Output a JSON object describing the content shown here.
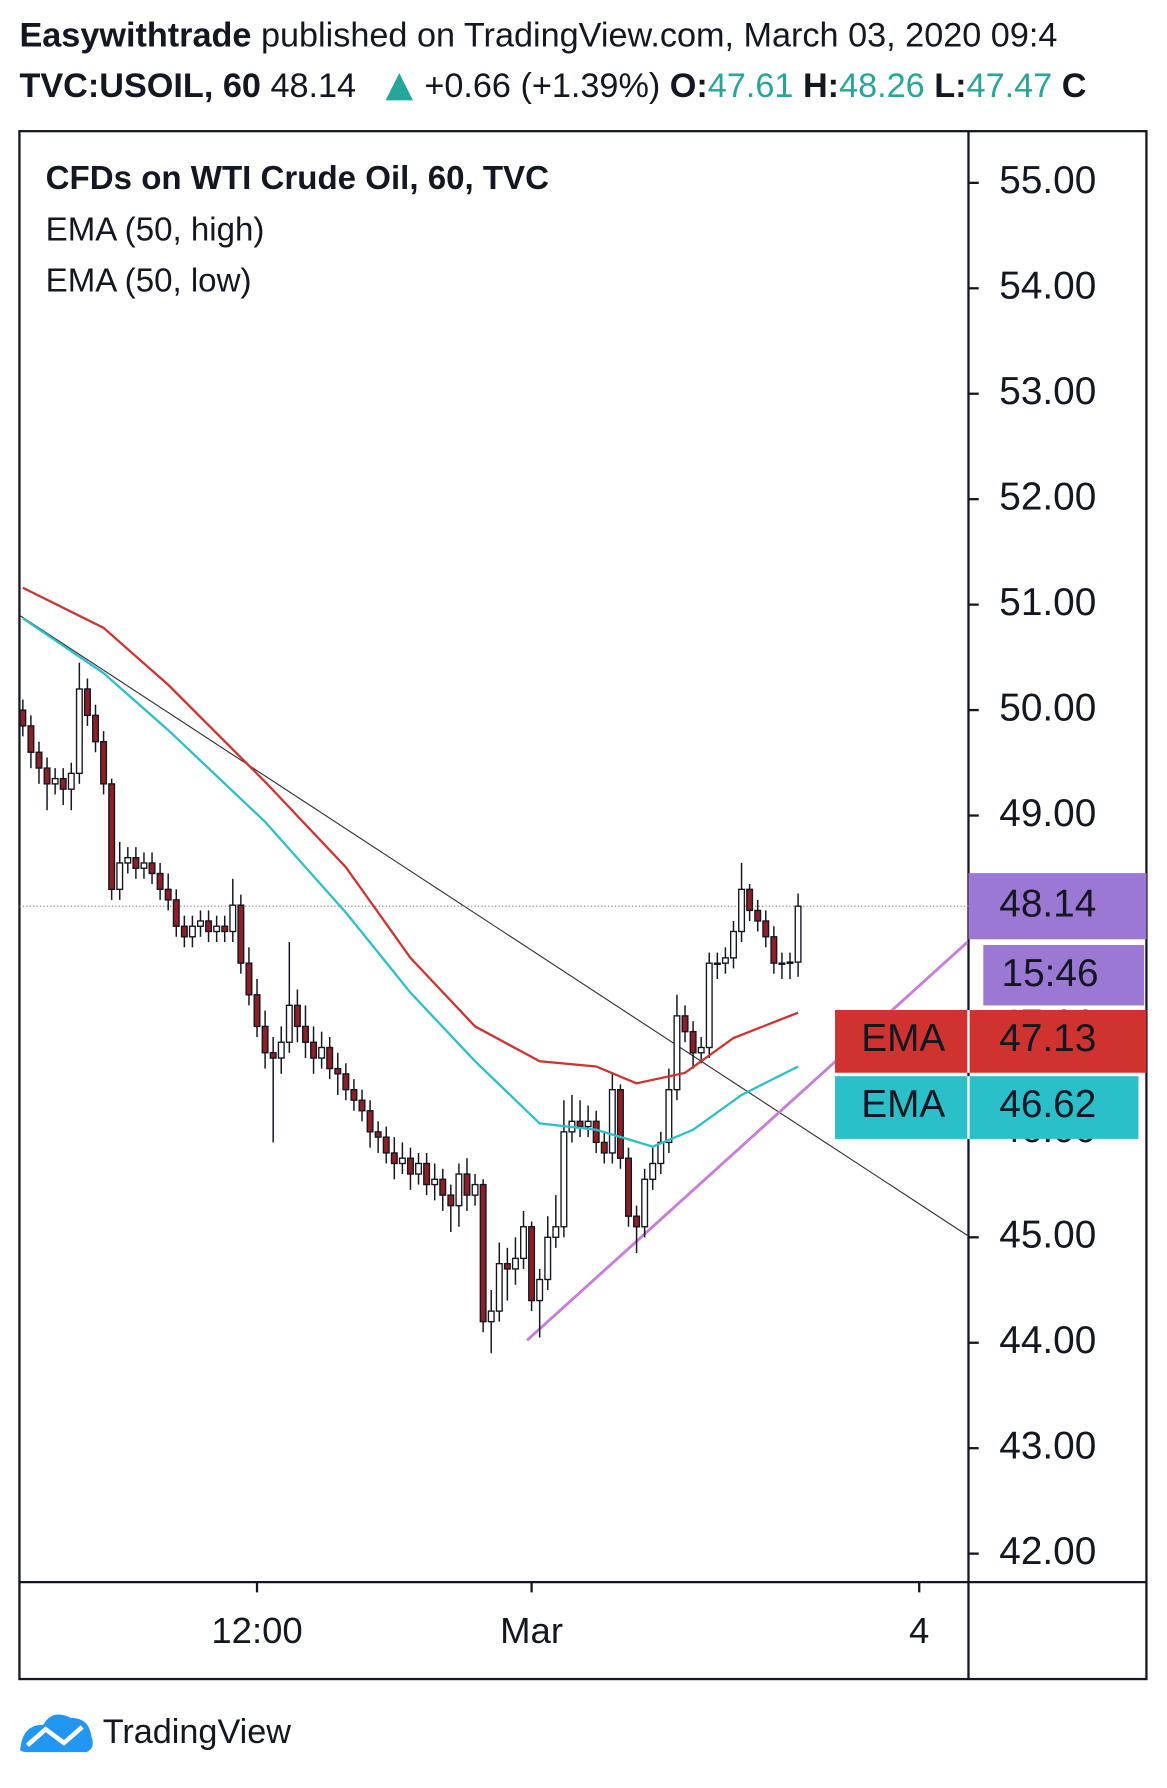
{
  "header": {
    "author": "Easywithtrade",
    "published": "published on TradingView.com, March 03, 2020 09:4",
    "symbol": "TVC:USOIL, 60",
    "change": "+0.66 (+1.39%)",
    "open_label": "O:",
    "high_label": "H:",
    "low_label": "L:",
    "close_label": "C"
  },
  "footer": {
    "brand": "TradingView"
  },
  "chart_data": {
    "type": "candlestick",
    "title": "CFDs on WTI Crude Oil, 60, TVC",
    "x": [
      0,
      1,
      2,
      3,
      4,
      5,
      6,
      7,
      8,
      9,
      10,
      11,
      12,
      13,
      14,
      15,
      16,
      17,
      18,
      19,
      20,
      21,
      22,
      23,
      24,
      25,
      26,
      27,
      28,
      29,
      30,
      31,
      32,
      33,
      34,
      35,
      36,
      37,
      38,
      39,
      40,
      41,
      42,
      43,
      44,
      45,
      46,
      47,
      48,
      49,
      50,
      51,
      52,
      53,
      54,
      55,
      56,
      57,
      58,
      59,
      60,
      61,
      62,
      63,
      64,
      65,
      66,
      67,
      68,
      69,
      70,
      71,
      72,
      73,
      74,
      75,
      76,
      77,
      78,
      79,
      80,
      81,
      82,
      83,
      84,
      85,
      86,
      87,
      88,
      89,
      90,
      91,
      92,
      93,
      94,
      95,
      96
    ],
    "open": [
      50.0,
      49.85,
      49.6,
      49.45,
      49.3,
      49.35,
      49.25,
      49.4,
      50.2,
      49.95,
      49.7,
      49.3,
      48.3,
      48.55,
      48.6,
      48.5,
      48.55,
      48.45,
      48.3,
      48.2,
      47.95,
      47.85,
      47.95,
      48.0,
      47.9,
      47.95,
      47.9,
      48.15,
      47.6,
      47.3,
      47.0,
      46.75,
      46.7,
      46.85,
      47.2,
      47.0,
      46.85,
      46.7,
      46.8,
      46.6,
      46.55,
      46.4,
      46.3,
      46.2,
      46.0,
      45.95,
      45.8,
      45.7,
      45.75,
      45.6,
      45.7,
      45.5,
      45.55,
      45.4,
      45.3,
      45.6,
      45.4,
      45.5,
      44.2,
      44.3,
      44.75,
      44.7,
      44.8,
      45.1,
      44.4,
      44.6,
      45.0,
      45.1,
      46.0,
      46.1,
      46.05,
      46.1,
      45.9,
      45.8,
      46.4,
      45.75,
      45.2,
      45.1,
      45.55,
      45.7,
      45.9,
      46.4,
      47.1,
      46.95,
      46.75,
      46.8,
      47.6,
      47.6,
      47.65,
      47.9,
      48.3,
      48.1,
      48.0,
      47.85,
      47.6,
      47.6,
      47.61
    ],
    "high": [
      50.1,
      49.95,
      49.7,
      49.55,
      49.45,
      49.45,
      49.5,
      50.45,
      50.3,
      50.05,
      49.8,
      49.35,
      48.75,
      48.7,
      48.7,
      48.65,
      48.65,
      48.55,
      48.45,
      48.3,
      48.05,
      48.05,
      48.1,
      48.1,
      48.05,
      48.05,
      48.4,
      48.25,
      47.75,
      47.45,
      47.15,
      46.9,
      47.0,
      47.8,
      47.35,
      47.2,
      47.0,
      46.95,
      46.9,
      46.75,
      46.65,
      46.5,
      46.4,
      46.3,
      46.1,
      46.05,
      45.95,
      45.9,
      45.85,
      45.8,
      45.8,
      45.7,
      45.65,
      45.5,
      45.7,
      45.75,
      45.6,
      45.55,
      44.5,
      44.95,
      44.9,
      45.0,
      45.25,
      45.15,
      44.7,
      45.2,
      45.4,
      46.3,
      46.35,
      46.3,
      46.25,
      46.2,
      46.0,
      46.55,
      46.45,
      45.85,
      45.3,
      45.65,
      45.85,
      46.0,
      46.6,
      47.3,
      47.2,
      47.05,
      46.9,
      47.7,
      47.7,
      47.75,
      48.0,
      48.55,
      48.35,
      48.2,
      48.1,
      47.95,
      47.7,
      47.7,
      48.26
    ],
    "low": [
      49.75,
      49.45,
      49.3,
      49.05,
      49.2,
      49.1,
      49.05,
      49.3,
      49.85,
      49.6,
      49.2,
      48.2,
      48.2,
      48.45,
      48.4,
      48.4,
      48.35,
      48.2,
      48.1,
      47.85,
      47.75,
      47.75,
      47.85,
      47.8,
      47.8,
      47.8,
      47.8,
      47.5,
      47.2,
      46.9,
      46.6,
      45.9,
      46.55,
      46.75,
      46.85,
      46.7,
      46.55,
      46.6,
      46.5,
      46.35,
      46.3,
      46.2,
      46.1,
      45.85,
      45.8,
      45.7,
      45.55,
      45.6,
      45.45,
      45.5,
      45.4,
      45.35,
      45.25,
      45.05,
      45.1,
      45.25,
      45.3,
      44.1,
      43.9,
      44.2,
      44.4,
      44.55,
      44.7,
      44.3,
      44.05,
      44.5,
      44.9,
      45.0,
      45.9,
      45.95,
      45.95,
      45.8,
      45.7,
      45.7,
      45.65,
      45.1,
      44.85,
      45.0,
      45.45,
      45.6,
      45.8,
      46.3,
      46.85,
      46.6,
      46.65,
      46.7,
      47.45,
      47.5,
      47.55,
      47.8,
      48.0,
      47.9,
      47.75,
      47.5,
      47.45,
      47.45,
      47.47
    ],
    "close": [
      49.85,
      49.6,
      49.45,
      49.3,
      49.35,
      49.25,
      49.4,
      50.2,
      49.95,
      49.7,
      49.3,
      48.3,
      48.55,
      48.6,
      48.5,
      48.55,
      48.45,
      48.3,
      48.2,
      47.95,
      47.85,
      47.95,
      48.0,
      47.9,
      47.95,
      47.9,
      48.15,
      47.6,
      47.3,
      47.0,
      46.75,
      46.7,
      46.85,
      47.2,
      47.0,
      46.85,
      46.7,
      46.8,
      46.6,
      46.55,
      46.4,
      46.3,
      46.2,
      46.0,
      45.95,
      45.8,
      45.7,
      45.75,
      45.6,
      45.7,
      45.5,
      45.55,
      45.4,
      45.3,
      45.6,
      45.4,
      45.5,
      44.2,
      44.3,
      44.75,
      44.7,
      44.8,
      45.1,
      44.4,
      44.6,
      45.0,
      45.1,
      46.0,
      46.1,
      46.05,
      46.1,
      45.9,
      45.8,
      46.4,
      45.75,
      45.2,
      45.1,
      45.55,
      45.7,
      45.9,
      46.4,
      47.1,
      46.95,
      46.75,
      46.8,
      47.6,
      47.6,
      47.65,
      47.9,
      48.3,
      48.1,
      48.0,
      47.85,
      47.6,
      47.6,
      47.61,
      48.14
    ],
    "up_color": "#ffffff",
    "down_color": "#8e1f24",
    "lines": [
      {
        "name": "EMA (50, high)",
        "color": "#d0322f",
        "tag": "EMA",
        "x": [
          0,
          10,
          18,
          30,
          40,
          48,
          56,
          64,
          71,
          76,
          82,
          88,
          96
        ],
        "values": [
          51.16,
          50.78,
          50.24,
          49.32,
          48.51,
          47.65,
          47.0,
          46.67,
          46.62,
          46.46,
          46.56,
          46.89,
          47.13
        ]
      },
      {
        "name": "EMA (50, low)",
        "color": "#2bbfc9",
        "tag": "EMA",
        "x": [
          0,
          10,
          18,
          30,
          40,
          48,
          56,
          64,
          71,
          78,
          83,
          89,
          96
        ],
        "values": [
          50.87,
          50.35,
          49.81,
          48.94,
          48.08,
          47.32,
          46.67,
          46.08,
          46.02,
          45.86,
          46.02,
          46.35,
          46.62
        ]
      }
    ],
    "countdown": "15:46",
    "last_color": "#9a78d4",
    "xlim": [
      -0.42,
      117.1
    ],
    "xticks": [
      {
        "value": 29,
        "label": "12:00"
      },
      {
        "value": 63,
        "label": "Mar"
      },
      {
        "value": 111,
        "label": "4"
      }
    ],
    "ylim": [
      41.73,
      55.49
    ],
    "yticks": [
      {
        "value": 42,
        "label": "42.00"
      },
      {
        "value": 43,
        "label": "43.00"
      },
      {
        "value": 44,
        "label": "44.00"
      },
      {
        "value": 45,
        "label": "45.00"
      },
      {
        "value": 46,
        "label": "46.00"
      },
      {
        "value": 47,
        "label": "47.00"
      },
      {
        "value": 48,
        "label": "48.00"
      },
      {
        "value": 49,
        "label": "49.00"
      },
      {
        "value": 50,
        "label": "50.00"
      },
      {
        "value": 51,
        "label": "51.00"
      },
      {
        "value": 52,
        "label": "52.00"
      },
      {
        "value": 53,
        "label": "53.00"
      },
      {
        "value": 54,
        "label": "54.00"
      },
      {
        "value": 55,
        "label": "55.00"
      }
    ],
    "grid": false
  }
}
